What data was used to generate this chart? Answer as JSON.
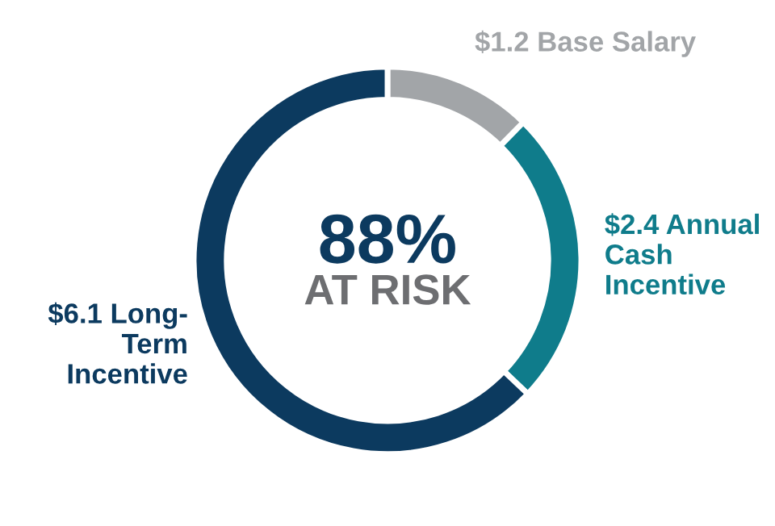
{
  "chart_data": {
    "type": "donut",
    "categories": [
      "Base Salary",
      "Annual\nCash\nIncentive",
      "Long-\nTerm\nIncentive"
    ],
    "values": [
      1.2,
      2.4,
      6.1
    ],
    "value_labels": [
      "$1.2",
      "$2.4",
      "$6.1"
    ],
    "colors": [
      "#a2a5a8",
      "#0f7c8b",
      "#0c3a5f"
    ],
    "annotations": [
      "88%",
      "AT RISK"
    ]
  }
}
